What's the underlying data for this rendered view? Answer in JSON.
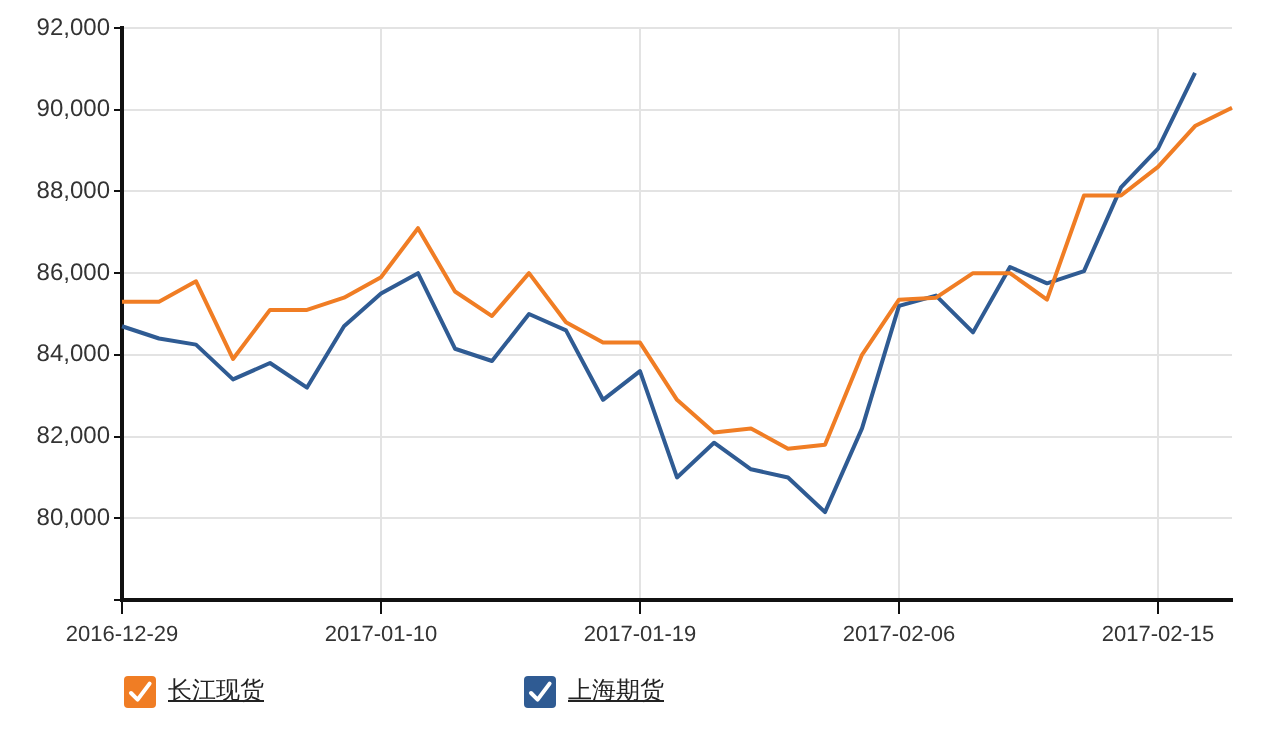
{
  "chart_data": {
    "type": "line",
    "categories": [
      "2016-12-29",
      null,
      null,
      null,
      null,
      null,
      null,
      "2017-01-10",
      null,
      null,
      null,
      null,
      null,
      null,
      "2017-01-19",
      null,
      null,
      null,
      null,
      null,
      null,
      "2017-02-06",
      null,
      null,
      null,
      null,
      null,
      null,
      "2017-02-15",
      null,
      null
    ],
    "series": [
      {
        "name": "长江现货",
        "color": "#f07d24",
        "values": [
          85300,
          85300,
          85800,
          83900,
          85100,
          85100,
          85400,
          85900,
          87100,
          85550,
          84950,
          86000,
          84800,
          84300,
          84300,
          82900,
          82100,
          82200,
          81700,
          81800,
          84000,
          85350,
          85400,
          86000,
          86000,
          85350,
          87900,
          87900,
          88600,
          89600,
          90050
        ]
      },
      {
        "name": "上海期货",
        "color": "#2f5b93",
        "values": [
          84700,
          84400,
          84250,
          83400,
          83800,
          83200,
          84700,
          85500,
          86000,
          84150,
          83850,
          85000,
          84600,
          82900,
          83600,
          81000,
          81850,
          81200,
          81000,
          80150,
          82200,
          85200,
          85450,
          84550,
          86150,
          85750,
          86050,
          88100,
          89050,
          90900,
          null
        ]
      }
    ],
    "ylim": [
      78000,
      92000
    ],
    "yticks": [
      {
        "value": 78000,
        "label": null
      },
      {
        "value": 80000,
        "label": "80,000"
      },
      {
        "value": 82000,
        "label": "82,000"
      },
      {
        "value": 84000,
        "label": "84,000"
      },
      {
        "value": 86000,
        "label": "86,000"
      },
      {
        "value": 88000,
        "label": "88,000"
      },
      {
        "value": 90000,
        "label": "90,000"
      },
      {
        "value": 92000,
        "label": "92,000"
      }
    ],
    "grid": true,
    "legend": "bottom left",
    "marker": "none",
    "line_style": "solid"
  }
}
